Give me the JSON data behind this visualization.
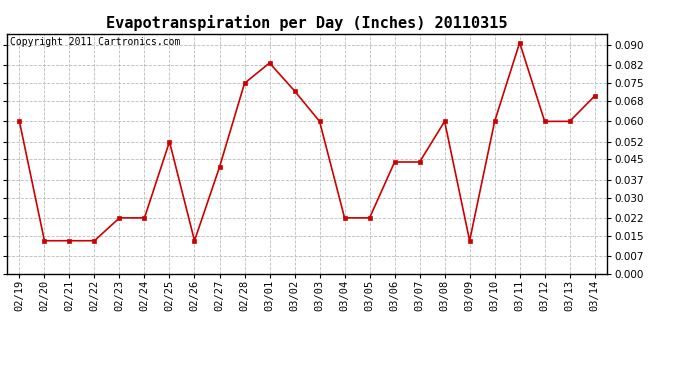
{
  "title": "Evapotranspiration per Day (Inches) 20110315",
  "copyright": "Copyright 2011 Cartronics.com",
  "dates": [
    "02/19",
    "02/20",
    "02/21",
    "02/22",
    "02/23",
    "02/24",
    "02/25",
    "02/26",
    "02/27",
    "02/28",
    "03/01",
    "03/02",
    "03/03",
    "03/04",
    "03/05",
    "03/06",
    "03/07",
    "03/08",
    "03/09",
    "03/10",
    "03/11",
    "03/12",
    "03/13",
    "03/14"
  ],
  "values": [
    0.06,
    0.013,
    0.013,
    0.013,
    0.022,
    0.022,
    0.052,
    0.013,
    0.042,
    0.075,
    0.083,
    0.072,
    0.06,
    0.022,
    0.022,
    0.044,
    0.044,
    0.06,
    0.013,
    0.06,
    0.091,
    0.06,
    0.06,
    0.07
  ],
  "ylim": [
    0.0,
    0.0945
  ],
  "yticks": [
    0.0,
    0.007,
    0.015,
    0.022,
    0.03,
    0.037,
    0.045,
    0.052,
    0.06,
    0.068,
    0.075,
    0.082,
    0.09
  ],
  "line_color": "#cc0000",
  "marker_color": "#cc0000",
  "background_color": "#ffffff",
  "grid_color": "#bbbbbb",
  "title_fontsize": 11,
  "tick_fontsize": 7.5,
  "copyright_fontsize": 7
}
